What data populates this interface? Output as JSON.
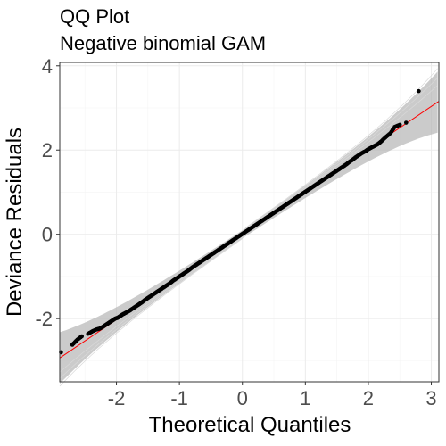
{
  "chart_data": {
    "type": "scatter",
    "title": "QQ Plot",
    "subtitle": "Negative binomial GAM",
    "xlabel": "Theoretical Quantiles",
    "ylabel": "Deviance Residuals",
    "xlim": [
      -2.9,
      3.12
    ],
    "ylim": [
      -3.5,
      4.08
    ],
    "x_ticks": [
      -2,
      -1,
      0,
      1,
      2,
      3
    ],
    "y_ticks": [
      -2,
      0,
      2,
      4
    ],
    "grid": true,
    "reference_line": {
      "slope": 1.012,
      "intercept": 0.0,
      "color": "#ff0000"
    },
    "confidence_band": true,
    "series": [
      {
        "x": [
          -2.88,
          -2.7,
          -2.62,
          -2.55,
          -2.45,
          -2.38,
          -2.32,
          -2.27,
          -2.22,
          -2.18,
          -2.14,
          -2.1,
          -2.06,
          -2.02,
          -1.98,
          -1.94,
          -1.9,
          -1.85,
          -1.8,
          -1.75,
          -1.7,
          -1.65,
          -1.6,
          -1.55,
          -1.5,
          -1.45,
          -1.4,
          -1.35,
          -1.3,
          -1.25,
          -1.2,
          -1.15,
          -1.1,
          -1.05,
          -1.0,
          -0.95,
          -0.9,
          -0.85,
          -0.8,
          -0.75,
          -0.7,
          -0.65,
          -0.6,
          -0.55,
          -0.5,
          -0.45,
          -0.4,
          -0.35,
          -0.3,
          -0.25,
          -0.2,
          -0.15,
          -0.1,
          -0.05,
          0.0,
          0.05,
          0.1,
          0.15,
          0.2,
          0.25,
          0.3,
          0.35,
          0.4,
          0.45,
          0.5,
          0.55,
          0.6,
          0.65,
          0.7,
          0.75,
          0.8,
          0.85,
          0.9,
          0.95,
          1.0,
          1.05,
          1.1,
          1.15,
          1.2,
          1.25,
          1.3,
          1.35,
          1.4,
          1.45,
          1.5,
          1.55,
          1.6,
          1.65,
          1.7,
          1.75,
          1.8,
          1.85,
          1.9,
          1.95,
          2.0,
          2.05,
          2.1,
          2.15,
          2.2,
          2.27,
          2.35,
          2.42,
          2.5,
          2.6,
          2.8
        ],
        "y": [
          -2.8,
          -2.62,
          -2.5,
          -2.42,
          -2.36,
          -2.3,
          -2.26,
          -2.24,
          -2.2,
          -2.16,
          -2.12,
          -2.08,
          -2.04,
          -2.0,
          -1.98,
          -1.94,
          -1.9,
          -1.86,
          -1.82,
          -1.77,
          -1.72,
          -1.67,
          -1.62,
          -1.56,
          -1.51,
          -1.46,
          -1.41,
          -1.36,
          -1.31,
          -1.26,
          -1.21,
          -1.16,
          -1.1,
          -1.05,
          -1.0,
          -0.95,
          -0.9,
          -0.85,
          -0.79,
          -0.74,
          -0.69,
          -0.64,
          -0.59,
          -0.54,
          -0.49,
          -0.44,
          -0.39,
          -0.34,
          -0.29,
          -0.24,
          -0.19,
          -0.14,
          -0.09,
          -0.04,
          0.01,
          0.06,
          0.11,
          0.16,
          0.21,
          0.26,
          0.31,
          0.36,
          0.41,
          0.46,
          0.51,
          0.56,
          0.61,
          0.66,
          0.71,
          0.76,
          0.81,
          0.86,
          0.91,
          0.96,
          1.01,
          1.06,
          1.11,
          1.16,
          1.21,
          1.26,
          1.31,
          1.36,
          1.41,
          1.46,
          1.51,
          1.56,
          1.61,
          1.66,
          1.72,
          1.77,
          1.83,
          1.88,
          1.93,
          1.97,
          2.02,
          2.06,
          2.1,
          2.14,
          2.2,
          2.3,
          2.4,
          2.55,
          2.6,
          2.65,
          3.4
        ]
      }
    ]
  }
}
